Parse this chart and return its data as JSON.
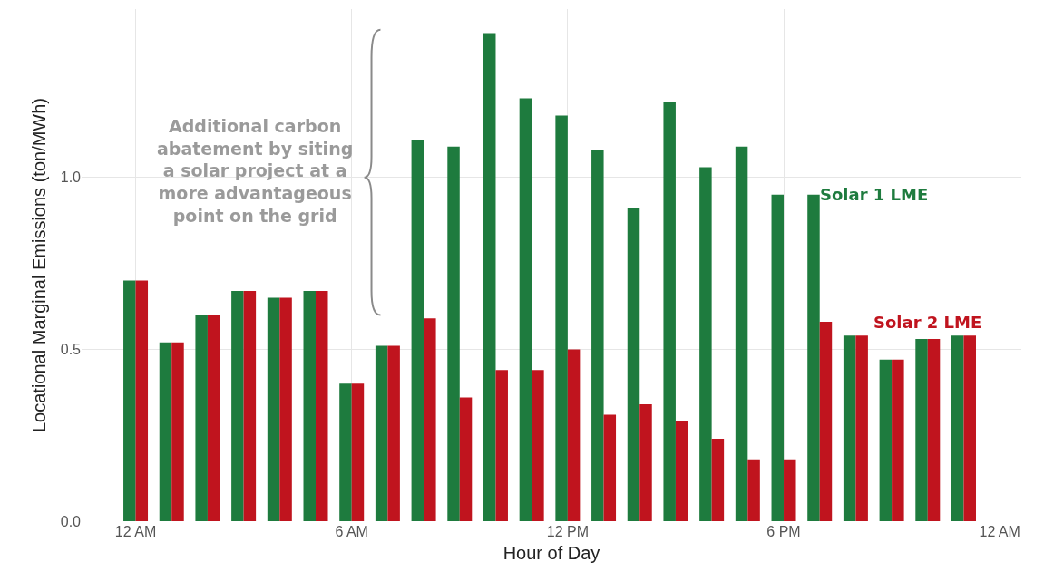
{
  "chart_data": {
    "type": "bar",
    "xlabel": "Hour of Day",
    "ylabel": "Locational Marginal Emissions (ton/MWh)",
    "categories": [
      "12 AM",
      null,
      null,
      null,
      null,
      null,
      "6 AM",
      null,
      null,
      null,
      null,
      null,
      "12 PM",
      null,
      null,
      null,
      null,
      null,
      "6 PM",
      null,
      null,
      null,
      null,
      null,
      "12 AM"
    ],
    "series": [
      {
        "name": "Solar 1 LME",
        "color": "#1e7b3e",
        "values": [
          0.7,
          0.52,
          0.6,
          0.67,
          0.65,
          0.67,
          0.4,
          0.51,
          1.11,
          1.09,
          1.42,
          1.23,
          1.18,
          1.08,
          0.91,
          1.22,
          1.03,
          1.09,
          0.95,
          0.95,
          0.54,
          0.47,
          0.53,
          0.54,
          null
        ]
      },
      {
        "name": "Solar 2 LME",
        "color": "#c0141e",
        "values": [
          0.7,
          0.52,
          0.6,
          0.67,
          0.65,
          0.67,
          0.4,
          0.51,
          0.59,
          0.36,
          0.44,
          0.44,
          0.5,
          0.31,
          0.34,
          0.29,
          0.24,
          0.18,
          0.18,
          0.58,
          0.54,
          0.47,
          0.53,
          0.54,
          null
        ]
      }
    ],
    "ylim": [
      0,
      1.49
    ],
    "yticks": [
      {
        "value": 0,
        "label": "0.0"
      },
      {
        "value": 0.5,
        "label": "0.5"
      },
      {
        "value": 1,
        "label": "1.0"
      }
    ],
    "grid": true,
    "legend": false,
    "annotations": [
      "Additional carbon\nabatement by siting\na solar project at a\nmore advantageous\npoint on the grid"
    ]
  }
}
